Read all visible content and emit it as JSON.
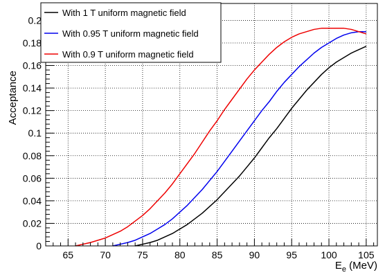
{
  "chart_data": {
    "type": "line",
    "title": "",
    "xlabel": "E",
    "xlabel_subscript": "e",
    "xlabel_unit": " (MeV)",
    "ylabel": "Acceptance",
    "xlim": [
      62,
      106.5
    ],
    "ylim": [
      0,
      0.215
    ],
    "x_ticks": [
      65,
      70,
      75,
      80,
      85,
      90,
      95,
      100,
      105
    ],
    "x_tick_labels": [
      "65",
      "70",
      "75",
      "80",
      "85",
      "90",
      "95",
      "100",
      "105"
    ],
    "y_ticks": [
      0,
      0.02,
      0.04,
      0.06,
      0.08,
      0.1,
      0.12,
      0.14,
      0.16,
      0.18,
      0.2
    ],
    "y_tick_labels": [
      "0",
      "0.02",
      "0.04",
      "0.06",
      "0.08",
      "0.1",
      "0.12",
      "0.14",
      "0.16",
      "0.18",
      "0.2"
    ],
    "grid": true,
    "legend_position": "top-left",
    "series": [
      {
        "name": "With 1 T uniform magnetic field",
        "color": "#000000",
        "x": [
          74,
          75,
          76,
          77,
          78,
          79,
          80,
          81,
          82,
          83,
          84,
          85,
          86,
          87,
          88,
          89,
          90,
          91,
          92,
          93,
          94,
          95,
          96,
          97,
          98,
          99,
          100,
          101,
          102,
          103,
          104,
          105
        ],
        "y": [
          0.0,
          0.0015,
          0.003,
          0.005,
          0.008,
          0.011,
          0.015,
          0.019,
          0.024,
          0.029,
          0.035,
          0.041,
          0.048,
          0.055,
          0.062,
          0.07,
          0.078,
          0.087,
          0.096,
          0.104,
          0.113,
          0.122,
          0.13,
          0.138,
          0.145,
          0.152,
          0.158,
          0.163,
          0.167,
          0.171,
          0.174,
          0.177
        ]
      },
      {
        "name": "With 0.95 T uniform magnetic field",
        "color": "#0000ee",
        "x": [
          71,
          72,
          73,
          74,
          75,
          76,
          77,
          78,
          79,
          80,
          81,
          82,
          83,
          84,
          85,
          86,
          87,
          88,
          89,
          90,
          91,
          92,
          93,
          94,
          95,
          96,
          97,
          98,
          99,
          100,
          101,
          102,
          103,
          104,
          105
        ],
        "y": [
          0.0,
          0.0015,
          0.003,
          0.005,
          0.008,
          0.011,
          0.015,
          0.019,
          0.024,
          0.03,
          0.036,
          0.043,
          0.05,
          0.058,
          0.066,
          0.075,
          0.084,
          0.093,
          0.102,
          0.111,
          0.12,
          0.128,
          0.137,
          0.145,
          0.152,
          0.159,
          0.165,
          0.171,
          0.176,
          0.18,
          0.184,
          0.187,
          0.189,
          0.19,
          0.19
        ]
      },
      {
        "name": "With 0.9 T uniform magnetic field",
        "color": "#ee0000",
        "x": [
          66,
          67,
          68,
          69,
          70,
          71,
          72,
          73,
          74,
          75,
          76,
          77,
          78,
          79,
          80,
          81,
          82,
          83,
          84,
          85,
          86,
          87,
          88,
          89,
          90,
          91,
          92,
          93,
          94,
          95,
          96,
          97,
          98,
          99,
          100,
          101,
          102,
          103,
          104,
          105
        ],
        "y": [
          0.0,
          0.0015,
          0.003,
          0.005,
          0.007,
          0.01,
          0.013,
          0.017,
          0.022,
          0.027,
          0.033,
          0.04,
          0.047,
          0.055,
          0.064,
          0.073,
          0.082,
          0.092,
          0.102,
          0.111,
          0.121,
          0.13,
          0.139,
          0.148,
          0.156,
          0.163,
          0.17,
          0.176,
          0.181,
          0.185,
          0.188,
          0.19,
          0.192,
          0.193,
          0.193,
          0.193,
          0.193,
          0.192,
          0.19,
          0.188
        ]
      }
    ]
  }
}
